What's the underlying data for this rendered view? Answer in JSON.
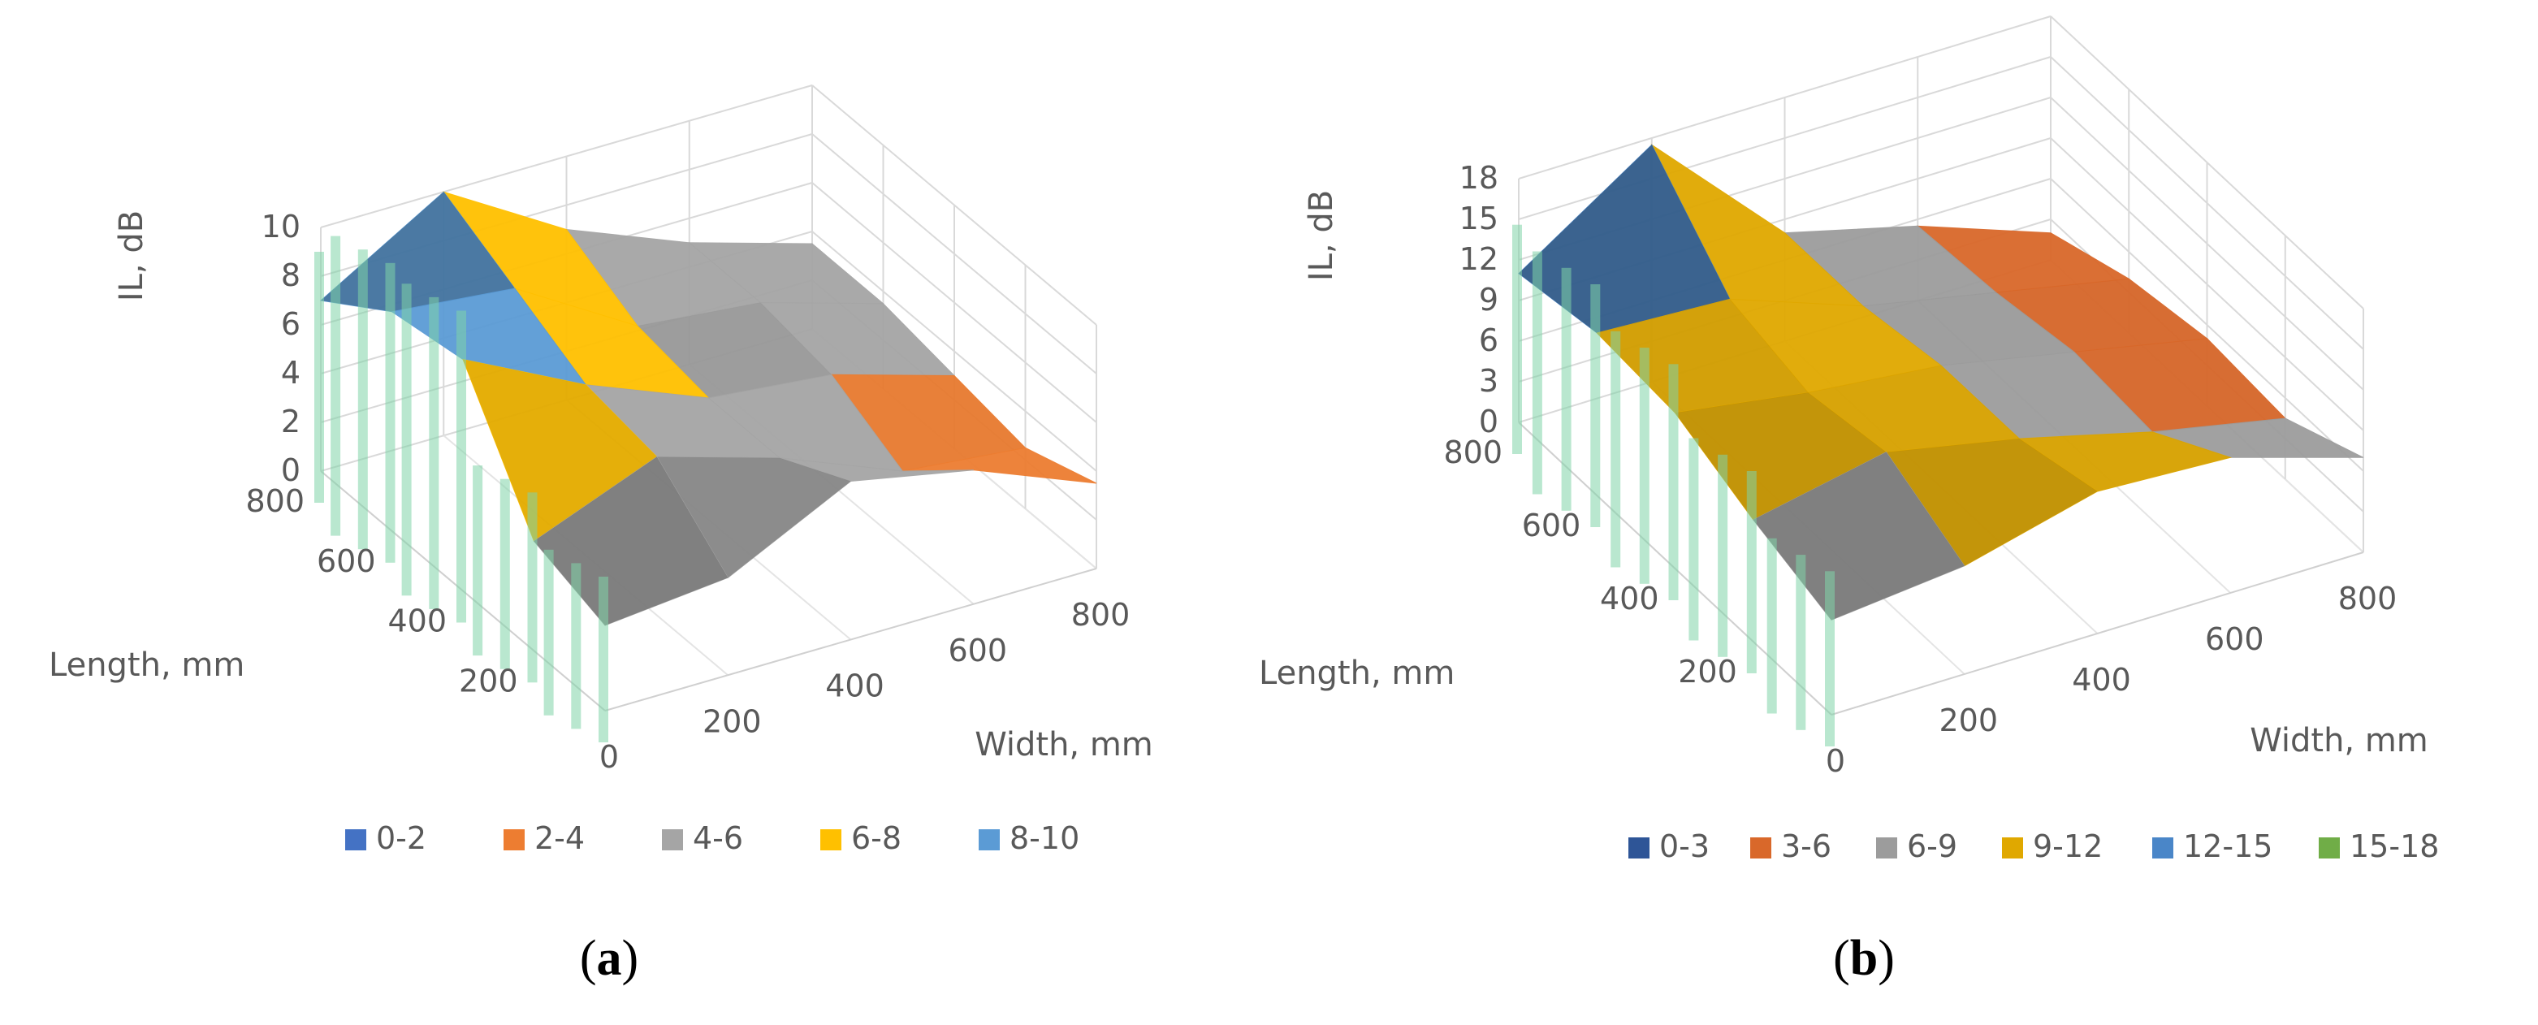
{
  "chart_data": [
    {
      "type": "surface",
      "panel_label": "a",
      "zlabel": "IL, dB",
      "xlabel": "Width, mm",
      "ylabel": "Length, mm",
      "z_ticks": [
        "0",
        "2",
        "4",
        "6",
        "8",
        "10"
      ],
      "x_ticks": [
        "0",
        "200",
        "400",
        "600",
        "800"
      ],
      "y_ticks": [
        "200",
        "400",
        "600",
        "800"
      ],
      "zlim": [
        0,
        10
      ],
      "xlim": [
        0,
        800
      ],
      "ylim": [
        0,
        800
      ],
      "grid": true,
      "legend_position": "bottom",
      "legend": [
        {
          "label": "0-2",
          "color": "#4472c4"
        },
        {
          "label": "2-4",
          "color": "#ed7d31"
        },
        {
          "label": "4-6",
          "color": "#a5a5a5"
        },
        {
          "label": "6-8",
          "color": "#ffc000"
        },
        {
          "label": "8-10",
          "color": "#5b9bd5"
        }
      ],
      "grid_x": [
        0,
        200,
        400,
        600,
        800
      ],
      "grid_y": [
        0,
        200,
        400,
        600,
        800
      ],
      "z": [
        [
          3.5,
          4.0,
          6.5,
          5.5,
          3.5
        ],
        [
          4.5,
          6.5,
          5.0,
          3.0,
          2.5
        ],
        [
          9.5,
          7.0,
          5.0,
          4.5,
          3.0
        ],
        [
          9.0,
          8.5,
          5.5,
          5.0,
          3.5
        ],
        [
          7.0,
          10.0,
          7.0,
          5.0,
          3.5
        ]
      ]
    },
    {
      "type": "surface",
      "panel_label": "b",
      "zlabel": "IL, dB",
      "xlabel": "Width, mm",
      "ylabel": "Length, mm",
      "z_ticks": [
        "0",
        "3",
        "6",
        "9",
        "12",
        "15",
        "18"
      ],
      "x_ticks": [
        "0",
        "200",
        "400",
        "600",
        "800"
      ],
      "y_ticks": [
        "200",
        "400",
        "600",
        "800"
      ],
      "zlim": [
        0,
        18
      ],
      "xlim": [
        0,
        800
      ],
      "ylim": [
        0,
        800
      ],
      "grid": true,
      "legend_position": "bottom",
      "legend": [
        {
          "label": "0-3",
          "color": "#2e5597"
        },
        {
          "label": "3-6",
          "color": "#d9682a"
        },
        {
          "label": "6-9",
          "color": "#9c9c9c"
        },
        {
          "label": "9-12",
          "color": "#e0a800"
        },
        {
          "label": "12-15",
          "color": "#4a86c8"
        },
        {
          "label": "15-18",
          "color": "#70ad47"
        }
      ],
      "grid_x": [
        0,
        200,
        400,
        600,
        800
      ],
      "grid_y": [
        0,
        200,
        400,
        600,
        800
      ],
      "z": [
        [
          7.0,
          8.0,
          10.5,
          10.0,
          7.0
        ],
        [
          9.0,
          11.0,
          9.0,
          6.5,
          4.5
        ],
        [
          11.5,
          10.0,
          9.0,
          7.0,
          5.0
        ],
        [
          12.0,
          11.5,
          8.0,
          6.0,
          4.0
        ],
        [
          11.0,
          17.5,
          8.0,
          5.5,
          2.0
        ]
      ]
    }
  ]
}
